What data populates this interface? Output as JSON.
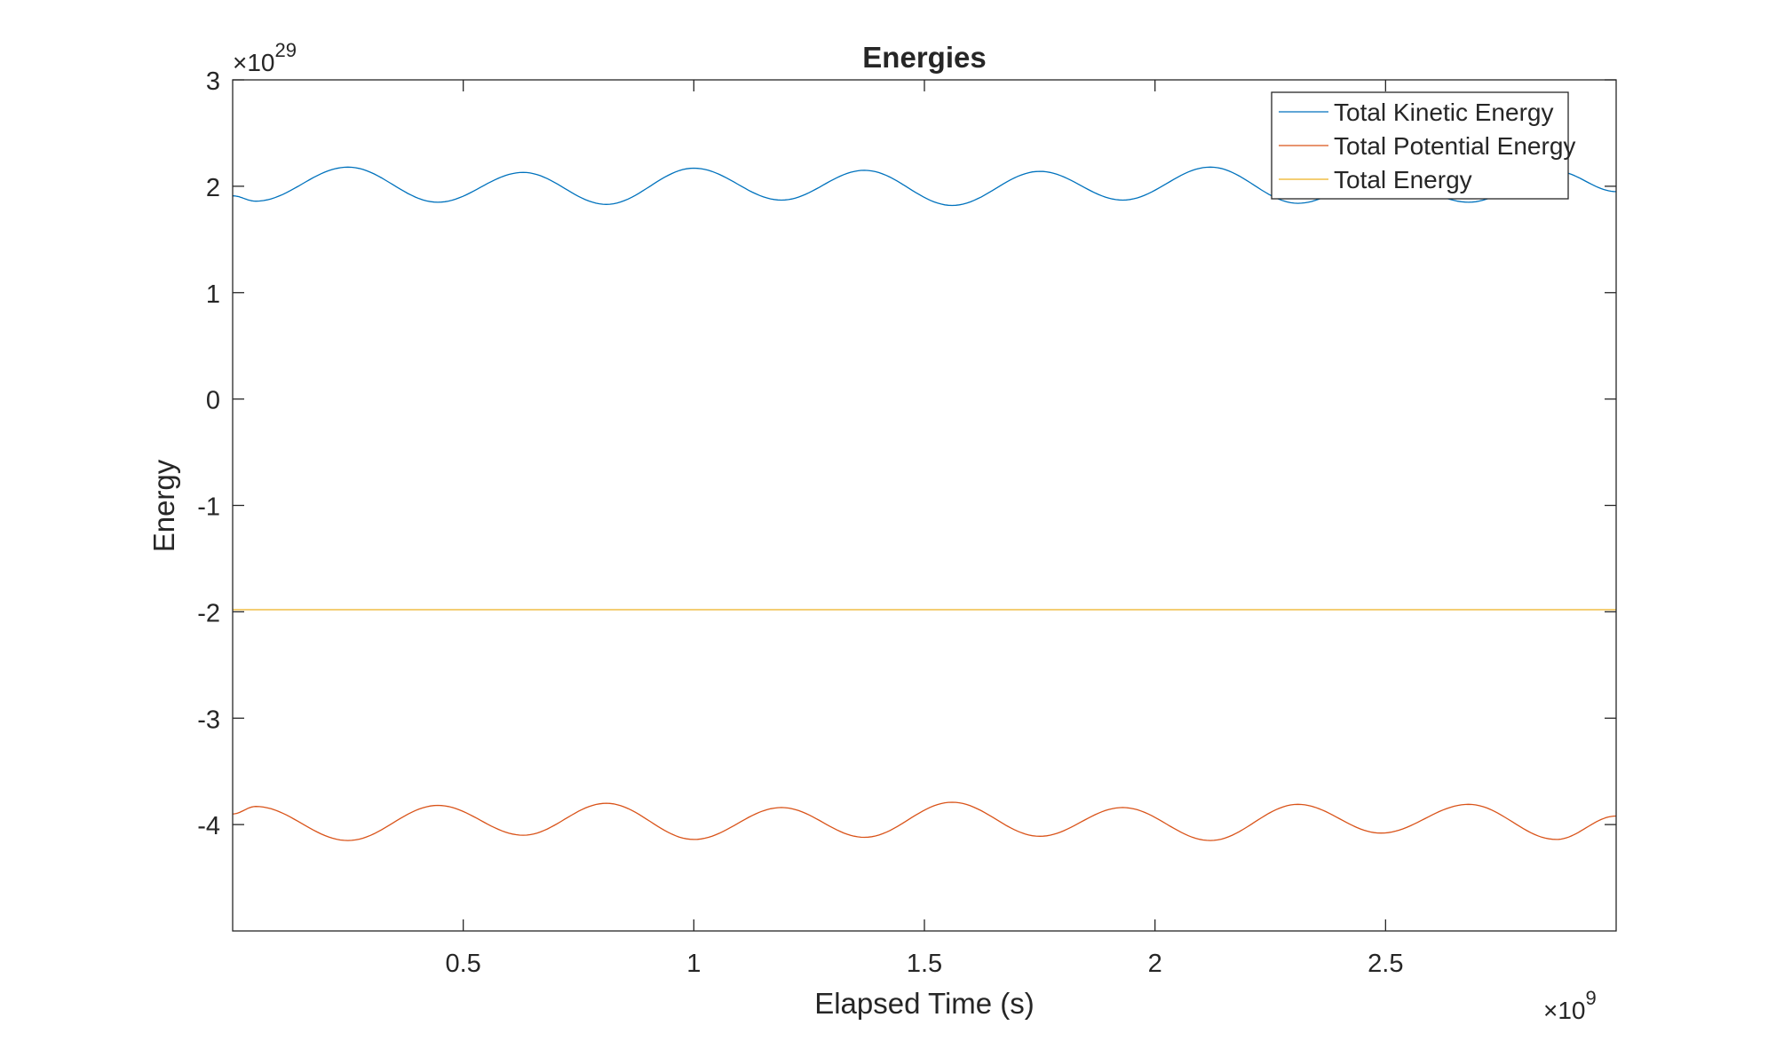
{
  "chart_data": {
    "type": "line",
    "title": "Energies",
    "xlabel": "Elapsed Time (s)",
    "ylabel": "Energy",
    "x_exponent_label": "×10",
    "x_exponent_power": "9",
    "y_exponent_label": "×10",
    "y_exponent_power": "29",
    "xlim": [
      0,
      3.0
    ],
    "ylim": [
      -5,
      3
    ],
    "x_ticks": [
      0.5,
      1,
      1.5,
      2,
      2.5
    ],
    "x_tick_labels": [
      "0.5",
      "1",
      "1.5",
      "2",
      "2.5"
    ],
    "y_ticks": [
      -4,
      -3,
      -2,
      -1,
      0,
      1,
      2,
      3
    ],
    "y_tick_labels": [
      "-4",
      "-3",
      "-2",
      "-1",
      "0",
      "1",
      "2",
      "3"
    ],
    "grid": false,
    "legend_position": "top-right",
    "series": [
      {
        "name": "Total Kinetic Energy",
        "color": "#0072BD",
        "x": [
          0,
          0.05,
          0.25,
          0.445,
          0.63,
          0.81,
          1.0,
          1.19,
          1.37,
          1.56,
          1.75,
          1.93,
          2.12,
          2.31,
          2.49,
          2.68,
          2.87,
          3.0
        ],
        "y": [
          1.91,
          1.86,
          2.18,
          1.85,
          2.13,
          1.83,
          2.17,
          1.87,
          2.15,
          1.82,
          2.14,
          1.87,
          2.18,
          1.84,
          2.1,
          1.85,
          2.14,
          1.95
        ]
      },
      {
        "name": "Total Potential Energy",
        "color": "#D95319",
        "x": [
          0,
          0.05,
          0.25,
          0.445,
          0.63,
          0.81,
          1.0,
          1.19,
          1.37,
          1.56,
          1.75,
          1.93,
          2.12,
          2.31,
          2.49,
          2.68,
          2.87,
          3.0
        ],
        "y": [
          -3.9,
          -3.83,
          -4.15,
          -3.82,
          -4.1,
          -3.8,
          -4.14,
          -3.84,
          -4.12,
          -3.79,
          -4.11,
          -3.84,
          -4.15,
          -3.81,
          -4.08,
          -3.81,
          -4.14,
          -3.92
        ]
      },
      {
        "name": "Total Energy",
        "color": "#EDB120",
        "x": [
          0,
          3.0
        ],
        "y": [
          -1.98,
          -1.98
        ]
      }
    ]
  }
}
